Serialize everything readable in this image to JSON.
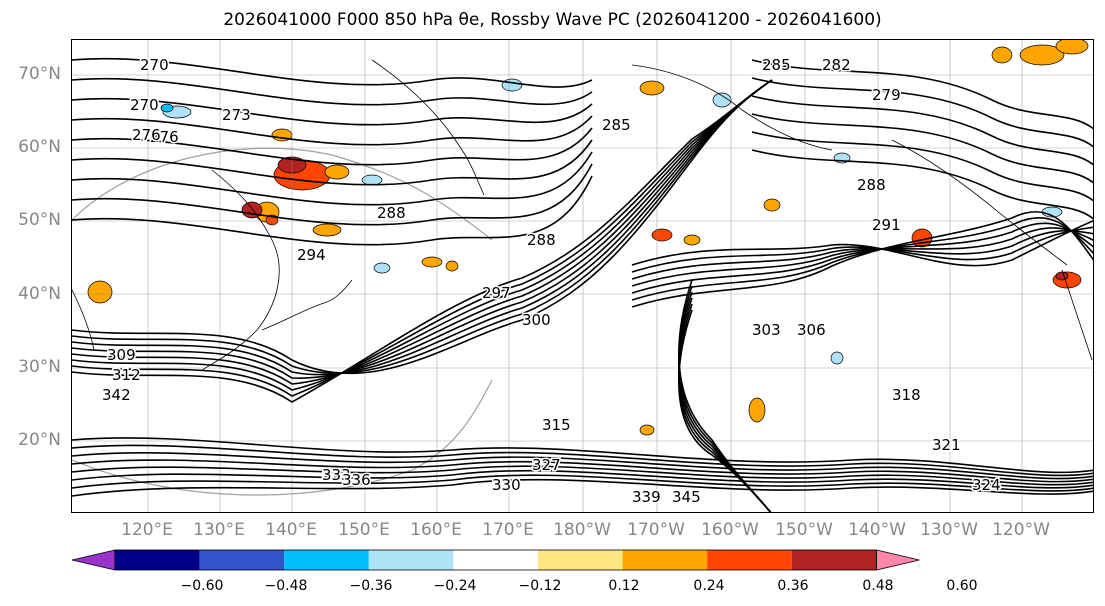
{
  "title": "2026041000 F000 850 hPa θe, Rossby Wave PC (2026041200 - 2026041600)",
  "map": {
    "lat_ticks": [
      "70°N",
      "60°N",
      "50°N",
      "40°N",
      "30°N",
      "20°N"
    ],
    "lon_ticks": [
      "120°E",
      "130°E",
      "140°E",
      "150°E",
      "160°E",
      "170°E",
      "180°W",
      "170°W",
      "160°W",
      "150°W",
      "140°W",
      "130°W",
      "120°W"
    ],
    "contour_labels": [
      "270",
      "270",
      "273",
      "276",
      "276",
      "279",
      "282",
      "285",
      "285",
      "288",
      "288",
      "288",
      "291",
      "294",
      "297",
      "300",
      "303",
      "306",
      "309",
      "312",
      "315",
      "318",
      "321",
      "324",
      "327",
      "330",
      "333",
      "336",
      "339",
      "342",
      "345"
    ],
    "colors": {
      "contour": "#000000",
      "grid": "#888888",
      "coast": "#000000"
    }
  },
  "colorbar": {
    "ticks": [
      "−0.60",
      "−0.48",
      "−0.36",
      "−0.24",
      "−0.12",
      "0.12",
      "0.24",
      "0.36",
      "0.48",
      "0.60"
    ],
    "colors": [
      "#9933cc",
      "#00008b",
      "#3355cc",
      "#00bfff",
      "#aee2f7",
      "#ffffff",
      "#ffe680",
      "#ffa500",
      "#ff4500",
      "#b22222",
      "#ff85aa"
    ]
  }
}
